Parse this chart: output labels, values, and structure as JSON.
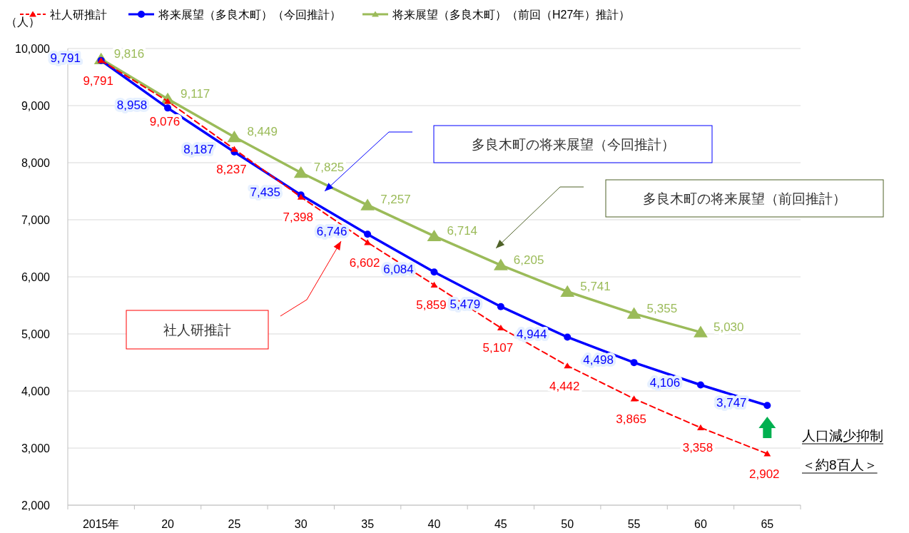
{
  "chart_data": {
    "type": "line",
    "ylabel": "（人）",
    "categories": [
      "2015年",
      "20",
      "25",
      "30",
      "35",
      "40",
      "45",
      "50",
      "55",
      "60",
      "65"
    ],
    "ylim": [
      2000,
      10000
    ],
    "yticks": [
      {
        "value": 2000,
        "label": "2,000"
      },
      {
        "value": 3000,
        "label": "3,000"
      },
      {
        "value": 4000,
        "label": "4,000"
      },
      {
        "value": 5000,
        "label": "5,000"
      },
      {
        "value": 6000,
        "label": "6,000"
      },
      {
        "value": 7000,
        "label": "7,000"
      },
      {
        "value": 8000,
        "label": "8,000"
      },
      {
        "value": 9000,
        "label": "9,000"
      },
      {
        "value": 10000,
        "label": "10,000"
      }
    ],
    "grid": "y",
    "legend": "top",
    "series": [
      {
        "name": "社人研推計",
        "color": "#ff0000",
        "marker": "triangle",
        "line_style": "dashed",
        "values": [
          9791,
          9076,
          8237,
          7398,
          6602,
          5859,
          5107,
          4442,
          3865,
          3358,
          2902
        ],
        "value_labels": [
          "9,791",
          "9,076",
          "8,237",
          "7,398",
          "6,602",
          "5,859",
          "5,107",
          "4,442",
          "3,865",
          "3,358",
          "2,902"
        ]
      },
      {
        "name": "将来展望（多良木町）（今回推計）",
        "color": "#0000ff",
        "marker": "circle",
        "line_style": "solid",
        "values": [
          9791,
          8958,
          8187,
          7435,
          6746,
          6084,
          5479,
          4944,
          4498,
          4106,
          3747
        ],
        "value_labels": [
          "9,791",
          "8,958",
          "8,187",
          "7,435",
          "6,746",
          "6,084",
          "5,479",
          "4,944",
          "4,498",
          "4,106",
          "3,747"
        ]
      },
      {
        "name": "将来展望（多良木町）（前回（H27年）推計）",
        "color": "#9bbb59",
        "marker": "triangle",
        "line_style": "solid",
        "values": [
          9816,
          9117,
          8449,
          7825,
          7257,
          6714,
          6205,
          5741,
          5355,
          5030,
          null
        ],
        "value_labels": [
          "9,816",
          "9,117",
          "8,449",
          "7,825",
          "7,257",
          "6,714",
          "6,205",
          "5,741",
          "5,355",
          "5,030",
          null
        ]
      }
    ],
    "annotations": [
      "多良木町の将来展望（今回推計）",
      "多良木町の将来展望（前回推計）",
      "社人研推計",
      "人口減少抑制",
      "＜約8百人＞"
    ]
  }
}
